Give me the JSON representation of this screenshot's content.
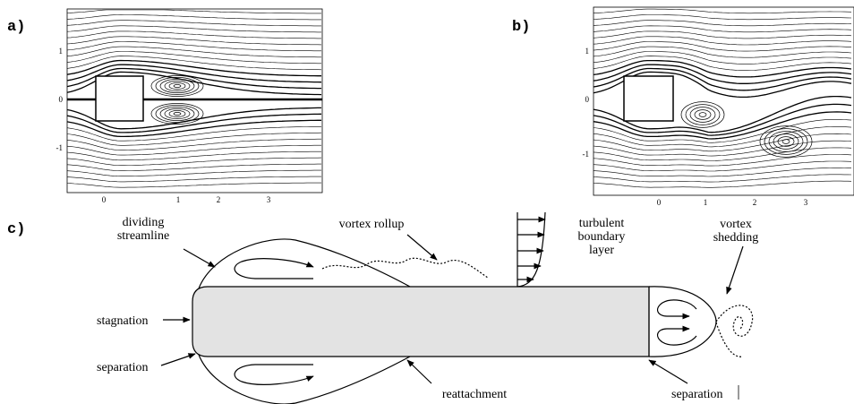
{
  "panels": [
    {
      "label": "a)",
      "xticks": [
        "0",
        "1",
        "2",
        "3"
      ],
      "yticks": [
        "1",
        "0",
        "-1"
      ]
    },
    {
      "label": "b)",
      "xticks": [
        "0",
        "1",
        "2",
        "3"
      ],
      "yticks": [
        "1",
        "0",
        "-1"
      ]
    },
    {
      "label": "c)",
      "annotations": {
        "dividing_streamline": [
          "dividing",
          "streamline"
        ],
        "vortex_rollup": [
          "vortex rollup"
        ],
        "turbulent_boundary_layer": [
          "turbulent",
          "boundary",
          "layer"
        ],
        "vortex_shedding": [
          "vortex",
          "shedding"
        ],
        "stagnation": [
          "stagnation"
        ],
        "separation_front": [
          "separation"
        ],
        "reattachment": [
          "reattachment"
        ],
        "separation_rear": [
          "separation"
        ]
      }
    }
  ]
}
